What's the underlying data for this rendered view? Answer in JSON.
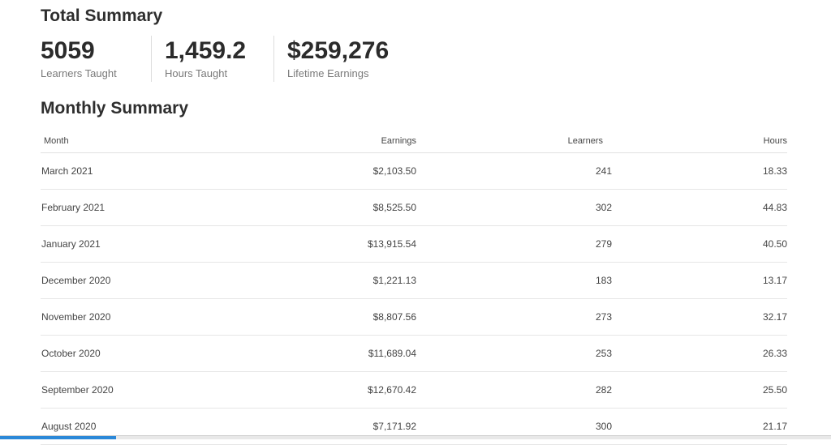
{
  "total_summary": {
    "title": "Total Summary",
    "stats": [
      {
        "value": "5059",
        "label": "Learners Taught"
      },
      {
        "value": "1,459.2",
        "label": "Hours Taught"
      },
      {
        "value": "$259,276",
        "label": "Lifetime Earnings"
      }
    ]
  },
  "monthly_summary": {
    "title": "Monthly Summary",
    "columns": {
      "month": "Month",
      "earnings": "Earnings",
      "learners": "Learners",
      "hours": "Hours"
    },
    "rows": [
      {
        "month": "March 2021",
        "earnings": "$2,103.50",
        "learners": "241",
        "hours": "18.33"
      },
      {
        "month": "February 2021",
        "earnings": "$8,525.50",
        "learners": "302",
        "hours": "44.83"
      },
      {
        "month": "January 2021",
        "earnings": "$13,915.54",
        "learners": "279",
        "hours": "40.50"
      },
      {
        "month": "December 2020",
        "earnings": "$1,221.13",
        "learners": "183",
        "hours": "13.17"
      },
      {
        "month": "November 2020",
        "earnings": "$8,807.56",
        "learners": "273",
        "hours": "32.17"
      },
      {
        "month": "October 2020",
        "earnings": "$11,689.04",
        "learners": "253",
        "hours": "26.33"
      },
      {
        "month": "September 2020",
        "earnings": "$12,670.42",
        "learners": "282",
        "hours": "25.50"
      },
      {
        "month": "August 2020",
        "earnings": "$7,171.92",
        "learners": "300",
        "hours": "21.17"
      }
    ]
  },
  "colors": {
    "accent": "#2b88d8",
    "text": "#333333",
    "muted": "#7a7a7a"
  }
}
